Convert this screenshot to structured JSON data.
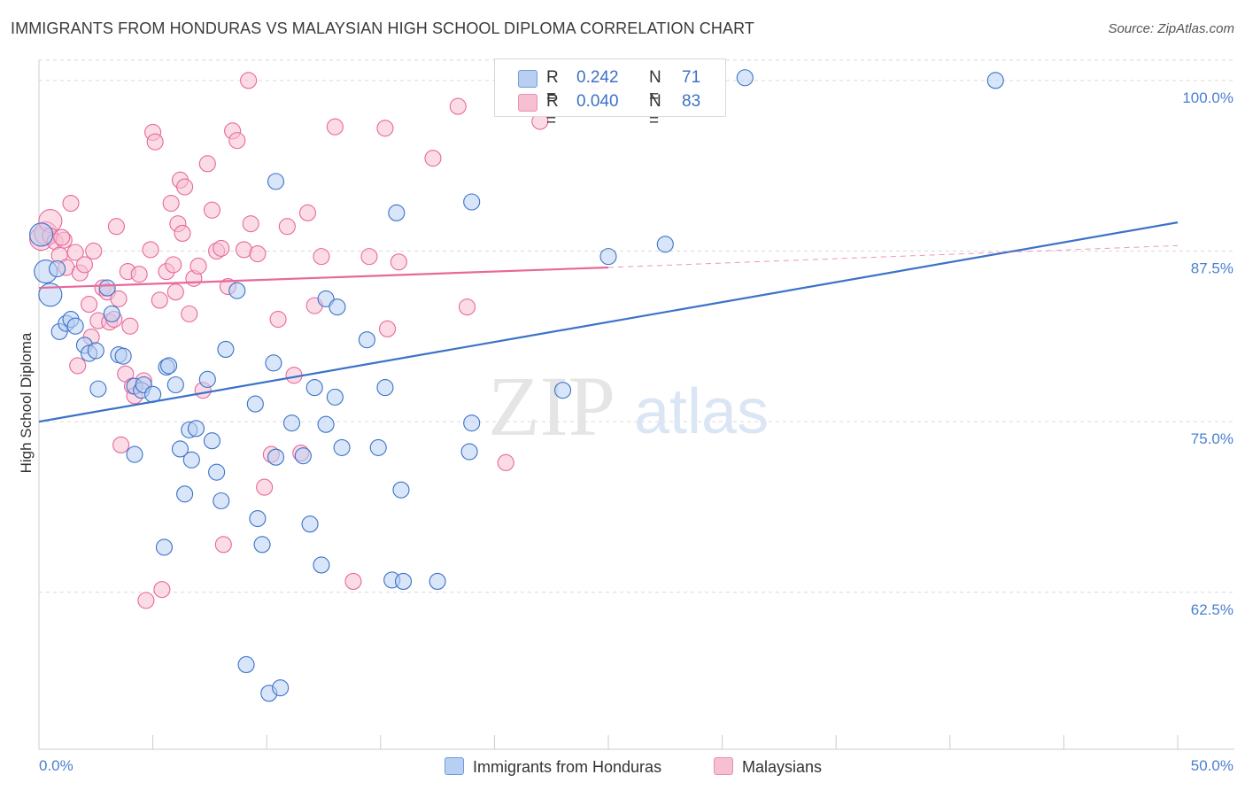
{
  "title": "IMMIGRANTS FROM HONDURAS VS MALAYSIAN HIGH SCHOOL DIPLOMA CORRELATION CHART",
  "source": "Source: ZipAtlas.com",
  "watermark": {
    "zip": "ZIP",
    "atlas": "atlas"
  },
  "colors": {
    "blue": "#3b72c8",
    "blue_fill": "#b9cff2",
    "pink": "#e8689a",
    "pink_fill": "#f7bfd2",
    "grid": "#d9d9d9",
    "tick_label": "#4a7fcf"
  },
  "stats": {
    "blue": {
      "r_label": "R =",
      "r_value": "0.242",
      "n_label": "N =",
      "n_value": "71"
    },
    "pink": {
      "r_label": "R =",
      "r_value": "0.040",
      "n_label": "N =",
      "n_value": "83"
    }
  },
  "legend": {
    "blue": "Immigrants from Honduras",
    "pink": "Malaysians"
  },
  "chart_data": {
    "type": "scatter",
    "ylabel": "High School Diploma",
    "xlim": [
      0,
      50
    ],
    "ylim": [
      51,
      102
    ],
    "x_tick_labels": [
      {
        "x": 0,
        "label": "0.0%"
      },
      {
        "x": 50,
        "label": "50.0%"
      }
    ],
    "y_tick_labels": [
      {
        "y": 100,
        "label": "100.0%"
      },
      {
        "y": 87.5,
        "label": "87.5%"
      },
      {
        "y": 75,
        "label": "75.0%"
      },
      {
        "y": 62.5,
        "label": "62.5%"
      }
    ],
    "grid": true,
    "series": [
      {
        "name": "Immigrants from Honduras",
        "color": "#3b72c8",
        "trend": {
          "x": [
            0,
            50
          ],
          "y": [
            75.0,
            89.6
          ]
        },
        "points": [
          [
            0.1,
            88.7
          ],
          [
            0.3,
            86.0
          ],
          [
            0.5,
            84.3
          ],
          [
            0.8,
            86.2
          ],
          [
            0.9,
            81.6
          ],
          [
            1.2,
            82.2
          ],
          [
            1.4,
            82.5
          ],
          [
            1.6,
            82.0
          ],
          [
            2.0,
            80.6
          ],
          [
            2.2,
            80.0
          ],
          [
            2.5,
            80.2
          ],
          [
            3.0,
            84.8
          ],
          [
            3.2,
            82.9
          ],
          [
            3.5,
            79.9
          ],
          [
            3.7,
            79.8
          ],
          [
            2.6,
            77.4
          ],
          [
            4.2,
            77.6
          ],
          [
            4.5,
            77.3
          ],
          [
            4.6,
            77.7
          ],
          [
            4.2,
            72.6
          ],
          [
            5.0,
            77.0
          ],
          [
            5.6,
            79.0
          ],
          [
            5.7,
            79.1
          ],
          [
            5.5,
            65.8
          ],
          [
            6.2,
            73.0
          ],
          [
            6.0,
            77.7
          ],
          [
            6.4,
            69.7
          ],
          [
            6.6,
            74.4
          ],
          [
            6.7,
            72.2
          ],
          [
            6.9,
            74.5
          ],
          [
            7.4,
            78.1
          ],
          [
            7.6,
            73.6
          ],
          [
            7.8,
            71.3
          ],
          [
            8.0,
            69.2
          ],
          [
            8.2,
            80.3
          ],
          [
            8.7,
            84.6
          ],
          [
            9.1,
            57.2
          ],
          [
            9.5,
            76.3
          ],
          [
            9.6,
            67.9
          ],
          [
            9.8,
            66.0
          ],
          [
            10.1,
            55.1
          ],
          [
            10.3,
            79.3
          ],
          [
            10.6,
            55.5
          ],
          [
            10.4,
            72.4
          ],
          [
            10.4,
            92.6
          ],
          [
            11.1,
            74.9
          ],
          [
            11.6,
            72.5
          ],
          [
            11.9,
            67.5
          ],
          [
            12.1,
            77.5
          ],
          [
            12.4,
            64.5
          ],
          [
            12.6,
            74.8
          ],
          [
            12.6,
            84.0
          ],
          [
            13.0,
            76.8
          ],
          [
            13.1,
            83.4
          ],
          [
            13.3,
            73.1
          ],
          [
            14.4,
            81.0
          ],
          [
            14.9,
            73.1
          ],
          [
            15.2,
            77.5
          ],
          [
            15.5,
            63.4
          ],
          [
            15.7,
            90.3
          ],
          [
            15.9,
            70.0
          ],
          [
            16.0,
            63.3
          ],
          [
            17.5,
            63.3
          ],
          [
            19.0,
            74.9
          ],
          [
            18.9,
            72.8
          ],
          [
            19.0,
            91.1
          ],
          [
            23.0,
            77.3
          ],
          [
            25.0,
            87.1
          ],
          [
            27.5,
            88.0
          ],
          [
            31.0,
            100.2
          ],
          [
            42.0,
            100.0
          ]
        ]
      },
      {
        "name": "Malaysians",
        "color": "#e8689a",
        "trend": {
          "x": [
            0,
            25
          ],
          "y": [
            84.8,
            86.3
          ],
          "dash_x": [
            25,
            50
          ],
          "dash_y": [
            86.3,
            87.9
          ]
        },
        "points": [
          [
            0.1,
            88.4
          ],
          [
            0.3,
            88.8
          ],
          [
            0.5,
            89.7
          ],
          [
            0.5,
            88.6
          ],
          [
            0.7,
            88.2
          ],
          [
            0.9,
            87.2
          ],
          [
            1.1,
            88.3
          ],
          [
            1.2,
            86.3
          ],
          [
            1.4,
            91.0
          ],
          [
            1.6,
            87.4
          ],
          [
            1.7,
            79.1
          ],
          [
            1.8,
            85.9
          ],
          [
            2.2,
            83.6
          ],
          [
            2.3,
            81.2
          ],
          [
            2.4,
            87.5
          ],
          [
            2.6,
            82.4
          ],
          [
            2.8,
            84.8
          ],
          [
            3.0,
            84.5
          ],
          [
            3.1,
            82.3
          ],
          [
            3.3,
            82.5
          ],
          [
            3.4,
            89.3
          ],
          [
            3.6,
            73.3
          ],
          [
            3.8,
            78.5
          ],
          [
            3.9,
            86.0
          ],
          [
            4.1,
            77.6
          ],
          [
            4.2,
            76.9
          ],
          [
            4.4,
            85.8
          ],
          [
            4.6,
            78.0
          ],
          [
            4.7,
            61.9
          ],
          [
            4.9,
            87.6
          ],
          [
            5.0,
            96.2
          ],
          [
            5.1,
            95.5
          ],
          [
            5.3,
            83.9
          ],
          [
            5.4,
            62.7
          ],
          [
            5.6,
            86.0
          ],
          [
            5.8,
            91.0
          ],
          [
            5.9,
            86.5
          ],
          [
            6.1,
            89.5
          ],
          [
            6.2,
            92.7
          ],
          [
            6.3,
            88.8
          ],
          [
            6.4,
            92.2
          ],
          [
            6.6,
            82.9
          ],
          [
            6.8,
            85.5
          ],
          [
            7.0,
            86.4
          ],
          [
            7.2,
            77.3
          ],
          [
            7.4,
            93.9
          ],
          [
            7.6,
            90.5
          ],
          [
            7.8,
            87.5
          ],
          [
            8.0,
            87.7
          ],
          [
            8.1,
            66.0
          ],
          [
            8.3,
            84.9
          ],
          [
            8.5,
            96.3
          ],
          [
            8.7,
            95.6
          ],
          [
            9.0,
            87.6
          ],
          [
            9.3,
            89.5
          ],
          [
            9.6,
            87.3
          ],
          [
            9.9,
            70.2
          ],
          [
            10.2,
            72.6
          ],
          [
            10.5,
            82.5
          ],
          [
            10.9,
            89.3
          ],
          [
            11.2,
            78.4
          ],
          [
            11.5,
            72.7
          ],
          [
            11.8,
            90.3
          ],
          [
            12.1,
            83.5
          ],
          [
            12.4,
            87.1
          ],
          [
            13.0,
            96.6
          ],
          [
            13.8,
            63.3
          ],
          [
            14.5,
            87.1
          ],
          [
            15.2,
            96.5
          ],
          [
            15.3,
            81.8
          ],
          [
            15.8,
            86.7
          ],
          [
            17.3,
            94.3
          ],
          [
            18.4,
            98.1
          ],
          [
            18.8,
            83.4
          ],
          [
            20.5,
            72.0
          ],
          [
            22.0,
            97.0
          ],
          [
            24.5,
            100.0
          ],
          [
            9.2,
            100.0
          ],
          [
            3.5,
            84.0
          ],
          [
            1.0,
            88.5
          ],
          [
            2.0,
            86.5
          ],
          [
            4.0,
            82.0
          ],
          [
            6.0,
            84.5
          ]
        ]
      }
    ]
  }
}
